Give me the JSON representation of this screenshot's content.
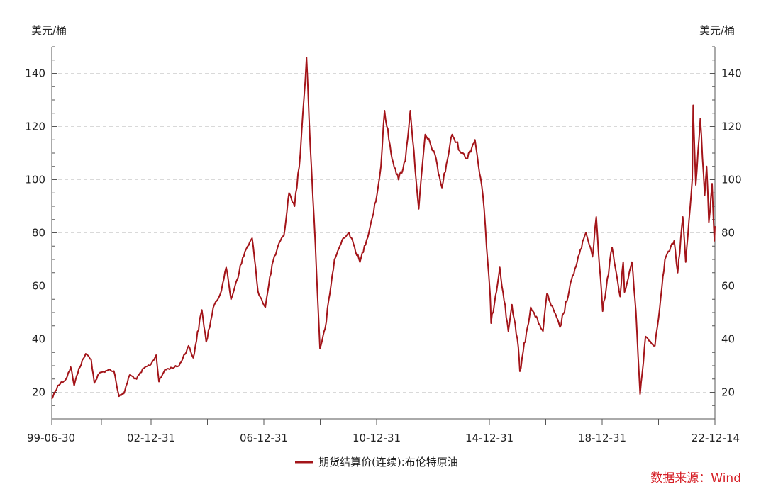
{
  "chart_data": {
    "type": "line",
    "title": "",
    "unit_left": "美元/桶",
    "unit_right": "美元/桶",
    "x_tick_labels": [
      "99-06-30",
      "02-12-31",
      "06-12-31",
      "10-12-31",
      "14-12-31",
      "18-12-31",
      "22-12-14"
    ],
    "x_range": [
      "1999-06-30",
      "2022-12-14"
    ],
    "ylim": [
      10,
      150
    ],
    "y_ticks": [
      20,
      40,
      60,
      80,
      100,
      120,
      140
    ],
    "grid": "horizontal-dashed",
    "legend_position": "bottom-center",
    "series": [
      {
        "name": "期货结算价(连续):布伦特原油",
        "color": "#a31419",
        "points": [
          [
            "1999-06-30",
            17.5
          ],
          [
            "1999-09-15",
            22.5
          ],
          [
            "1999-12-31",
            25.0
          ],
          [
            "2000-03-01",
            29.5
          ],
          [
            "2000-04-15",
            22.5
          ],
          [
            "2000-06-15",
            29.0
          ],
          [
            "2000-09-10",
            34.5
          ],
          [
            "2000-11-20",
            32.5
          ],
          [
            "2000-12-31",
            23.5
          ],
          [
            "2001-03-01",
            27.0
          ],
          [
            "2001-06-30",
            28.5
          ],
          [
            "2001-09-10",
            28.0
          ],
          [
            "2001-11-15",
            18.5
          ],
          [
            "2002-01-15",
            19.5
          ],
          [
            "2002-04-01",
            26.5
          ],
          [
            "2002-06-30",
            25.0
          ],
          [
            "2002-09-30",
            29.0
          ],
          [
            "2002-12-31",
            30.5
          ],
          [
            "2003-03-10",
            34.0
          ],
          [
            "2003-04-15",
            24.0
          ],
          [
            "2003-07-01",
            28.5
          ],
          [
            "2003-12-31",
            30.0
          ],
          [
            "2004-05-01",
            37.5
          ],
          [
            "2004-06-30",
            33.0
          ],
          [
            "2004-10-20",
            51.0
          ],
          [
            "2004-12-15",
            39.0
          ],
          [
            "2005-03-31",
            53.0
          ],
          [
            "2005-06-15",
            57.0
          ],
          [
            "2005-08-30",
            67.0
          ],
          [
            "2005-11-01",
            55.0
          ],
          [
            "2006-04-30",
            73.0
          ],
          [
            "2006-08-01",
            78.0
          ],
          [
            "2006-10-15",
            58.0
          ],
          [
            "2007-01-18",
            52.0
          ],
          [
            "2007-04-15",
            68.0
          ],
          [
            "2007-07-31",
            77.0
          ],
          [
            "2007-09-15",
            79.0
          ],
          [
            "2007-11-20",
            95.0
          ],
          [
            "2008-01-31",
            90.0
          ],
          [
            "2008-04-15",
            110.0
          ],
          [
            "2008-07-04",
            146.0
          ],
          [
            "2008-08-20",
            113.0
          ],
          [
            "2008-10-10",
            85.0
          ],
          [
            "2008-12-24",
            36.5
          ],
          [
            "2009-03-01",
            44.0
          ],
          [
            "2009-06-30",
            70.0
          ],
          [
            "2009-10-20",
            78.0
          ],
          [
            "2010-01-05",
            80.0
          ],
          [
            "2010-05-25",
            69.0
          ],
          [
            "2010-10-01",
            82.0
          ],
          [
            "2010-12-31",
            94.5
          ],
          [
            "2011-02-20",
            105.0
          ],
          [
            "2011-04-08",
            126.0
          ],
          [
            "2011-06-30",
            110.0
          ],
          [
            "2011-10-05",
            100.0
          ],
          [
            "2011-12-31",
            107.0
          ],
          [
            "2012-03-05",
            126.0
          ],
          [
            "2012-06-22",
            89.0
          ],
          [
            "2012-09-14",
            117.0
          ],
          [
            "2012-12-31",
            111.0
          ],
          [
            "2013-04-18",
            97.0
          ],
          [
            "2013-08-28",
            117.0
          ],
          [
            "2013-12-31",
            110.0
          ],
          [
            "2014-03-01",
            108.0
          ],
          [
            "2014-06-19",
            115.0
          ],
          [
            "2014-09-30",
            94.0
          ],
          [
            "2014-12-31",
            57.0
          ],
          [
            "2015-01-13",
            46.0
          ],
          [
            "2015-05-06",
            67.0
          ],
          [
            "2015-08-24",
            43.0
          ],
          [
            "2015-10-09",
            53.0
          ],
          [
            "2015-12-31",
            37.0
          ],
          [
            "2016-01-20",
            27.9
          ],
          [
            "2016-06-08",
            52.0
          ],
          [
            "2016-11-14",
            43.0
          ],
          [
            "2017-01-03",
            57.0
          ],
          [
            "2017-06-21",
            44.5
          ],
          [
            "2017-12-31",
            66.5
          ],
          [
            "2018-05-22",
            80.0
          ],
          [
            "2018-08-15",
            71.0
          ],
          [
            "2018-10-03",
            86.0
          ],
          [
            "2018-12-24",
            50.5
          ],
          [
            "2019-04-25",
            74.5
          ],
          [
            "2019-08-07",
            56.0
          ],
          [
            "2019-09-16",
            69.0
          ],
          [
            "2019-10-03",
            57.7
          ],
          [
            "2020-01-06",
            69.0
          ],
          [
            "2020-02-28",
            50.0
          ],
          [
            "2020-04-21",
            19.3
          ],
          [
            "2020-06-30",
            41.0
          ],
          [
            "2020-10-30",
            37.5
          ],
          [
            "2020-12-31",
            51.8
          ],
          [
            "2021-03-08",
            70.0
          ],
          [
            "2021-07-05",
            77.0
          ],
          [
            "2021-08-20",
            65.0
          ],
          [
            "2021-10-25",
            86.0
          ],
          [
            "2021-12-01",
            69.0
          ],
          [
            "2022-02-24",
            100.0
          ],
          [
            "2022-03-08",
            128.0
          ],
          [
            "2022-04-11",
            98.0
          ],
          [
            "2022-06-08",
            123.0
          ],
          [
            "2022-08-03",
            94.0
          ],
          [
            "2022-08-29",
            105.0
          ],
          [
            "2022-09-26",
            84.0
          ],
          [
            "2022-11-07",
            98.5
          ],
          [
            "2022-12-07",
            77.0
          ],
          [
            "2022-12-14",
            82.5
          ]
        ]
      }
    ],
    "source": "数据来源：Wind"
  }
}
